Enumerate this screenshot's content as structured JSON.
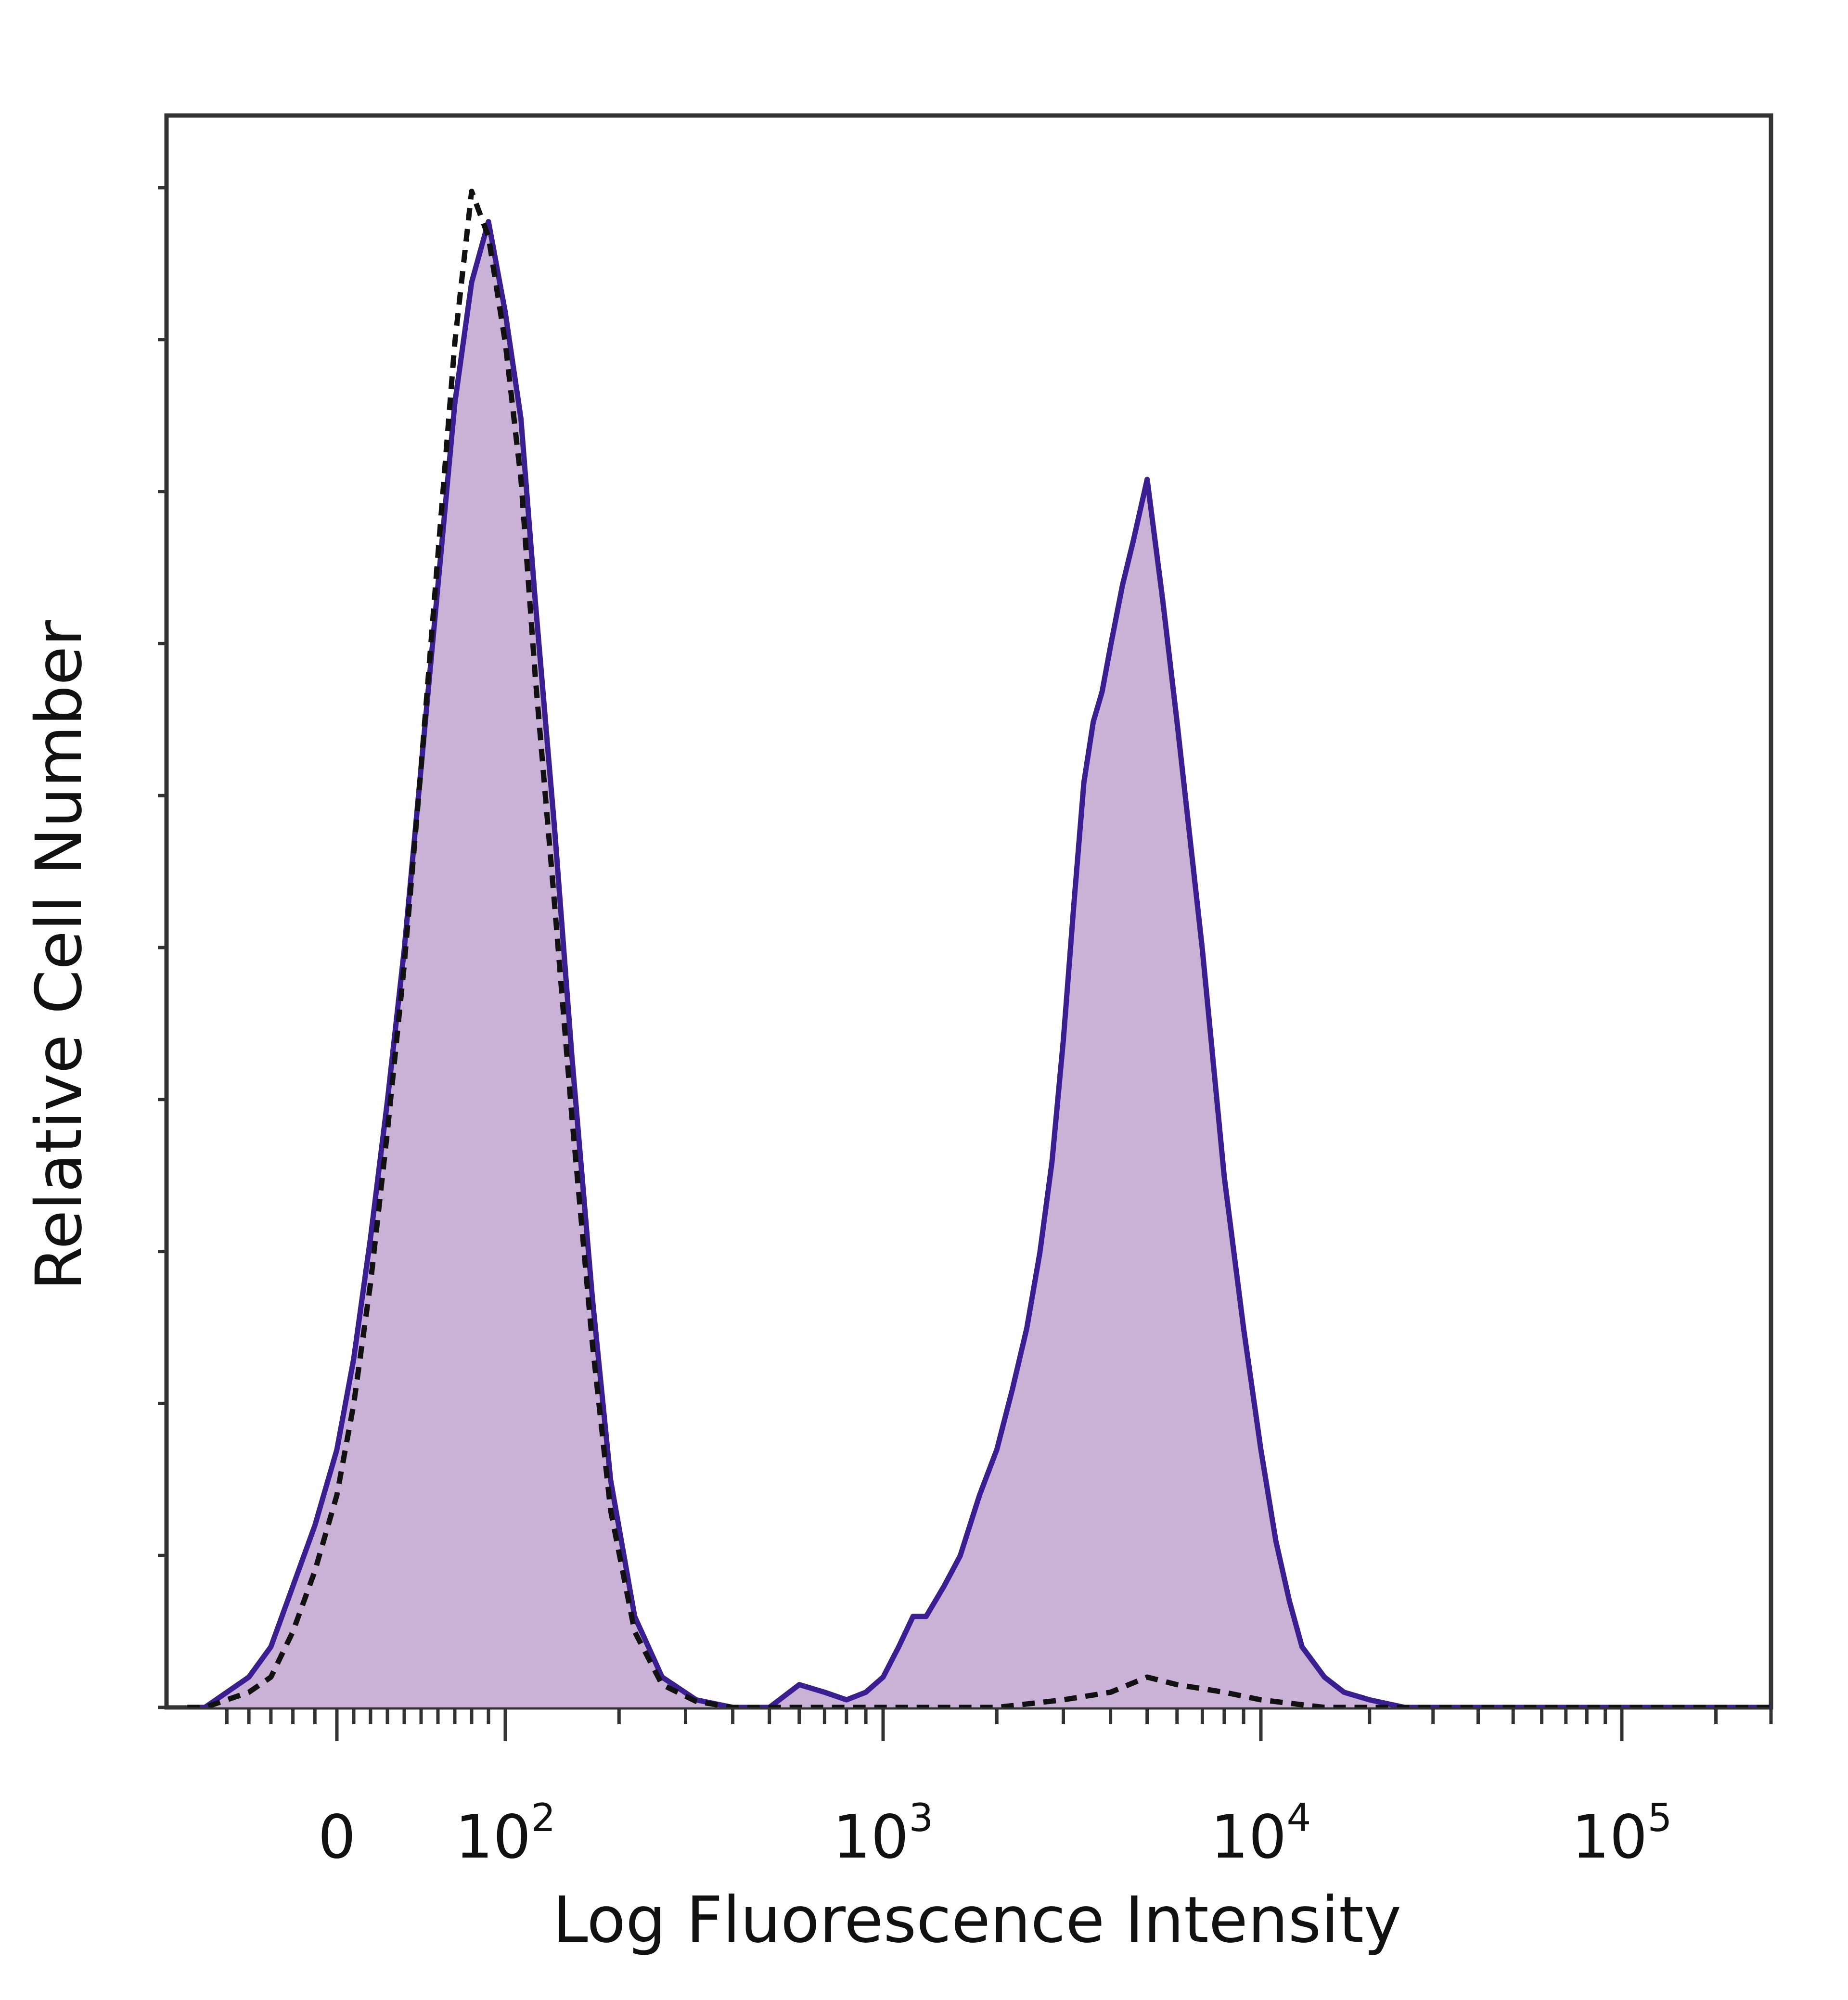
{
  "chart_data": {
    "type": "area",
    "xlabel": "Log Fluorescence Intensity",
    "ylabel": "Relative Cell Number",
    "x_scale": "biexponential",
    "xlim": [
      -70,
      300000
    ],
    "ylim": [
      0,
      1.05
    ],
    "grid": false,
    "legend": "none",
    "x_ticks": [
      {
        "value": 0,
        "base": "0",
        "exp": ""
      },
      {
        "value": 100,
        "base": "10",
        "exp": "2"
      },
      {
        "value": 1000,
        "base": "10",
        "exp": "3"
      },
      {
        "value": 10000,
        "base": "10",
        "exp": "4"
      },
      {
        "value": 100000,
        "base": "10",
        "exp": "5"
      }
    ],
    "colors": {
      "fill": "#C9B2D5",
      "stained_line": "#3B1E8F",
      "control_line": "#111111",
      "frame": "#333333"
    },
    "series": [
      {
        "style": "filled-purple-line",
        "x": [
          -68,
          -60,
          -50,
          -40,
          -30,
          -20,
          -10,
          0,
          10,
          20,
          30,
          40,
          50,
          60,
          70,
          80,
          90,
          100,
          110,
          120,
          135,
          150,
          170,
          190,
          220,
          260,
          320,
          400,
          500,
          600,
          700,
          800,
          900,
          1000,
          1100,
          1200,
          1300,
          1450,
          1600,
          1800,
          2000,
          2200,
          2400,
          2600,
          2800,
          3000,
          3200,
          3400,
          3600,
          3800,
          4000,
          4300,
          4600,
          5000,
          5500,
          6000,
          7000,
          8000,
          9000,
          10000,
          11000,
          12000,
          13000,
          15000,
          17000,
          20000,
          25000,
          30000,
          40000,
          60000,
          100000,
          150000,
          200000,
          250000,
          300000
        ],
        "y": [
          0,
          0,
          0.01,
          0.02,
          0.04,
          0.08,
          0.12,
          0.17,
          0.23,
          0.31,
          0.4,
          0.5,
          0.62,
          0.74,
          0.86,
          0.94,
          0.98,
          0.92,
          0.85,
          0.73,
          0.58,
          0.43,
          0.27,
          0.15,
          0.06,
          0.02,
          0.005,
          0,
          0,
          0.015,
          0.01,
          0.005,
          0.01,
          0.02,
          0.04,
          0.06,
          0.06,
          0.08,
          0.1,
          0.14,
          0.17,
          0.21,
          0.25,
          0.3,
          0.36,
          0.44,
          0.53,
          0.61,
          0.65,
          0.67,
          0.7,
          0.74,
          0.77,
          0.81,
          0.73,
          0.65,
          0.5,
          0.35,
          0.25,
          0.17,
          0.11,
          0.07,
          0.04,
          0.02,
          0.01,
          0.005,
          0,
          0,
          0,
          0,
          0,
          0,
          0,
          0,
          0
        ]
      },
      {
        "style": "dashed-black-line",
        "x": [
          -68,
          -60,
          -50,
          -40,
          -30,
          -20,
          -10,
          0,
          10,
          20,
          30,
          40,
          50,
          60,
          70,
          80,
          90,
          100,
          110,
          120,
          135,
          150,
          170,
          190,
          220,
          260,
          320,
          400,
          600,
          1000,
          2000,
          3000,
          4000,
          5000,
          6000,
          8000,
          10000,
          15000,
          20000,
          30000,
          50000,
          100000,
          200000,
          300000
        ],
        "y": [
          0,
          0,
          0.005,
          0.01,
          0.02,
          0.05,
          0.09,
          0.14,
          0.2,
          0.28,
          0.38,
          0.49,
          0.62,
          0.76,
          0.9,
          1.0,
          0.97,
          0.9,
          0.81,
          0.68,
          0.53,
          0.39,
          0.24,
          0.13,
          0.05,
          0.015,
          0.004,
          0,
          0,
          0,
          0,
          0.005,
          0.01,
          0.02,
          0.015,
          0.01,
          0.005,
          0,
          0,
          0,
          0,
          0,
          0,
          0
        ]
      }
    ]
  }
}
